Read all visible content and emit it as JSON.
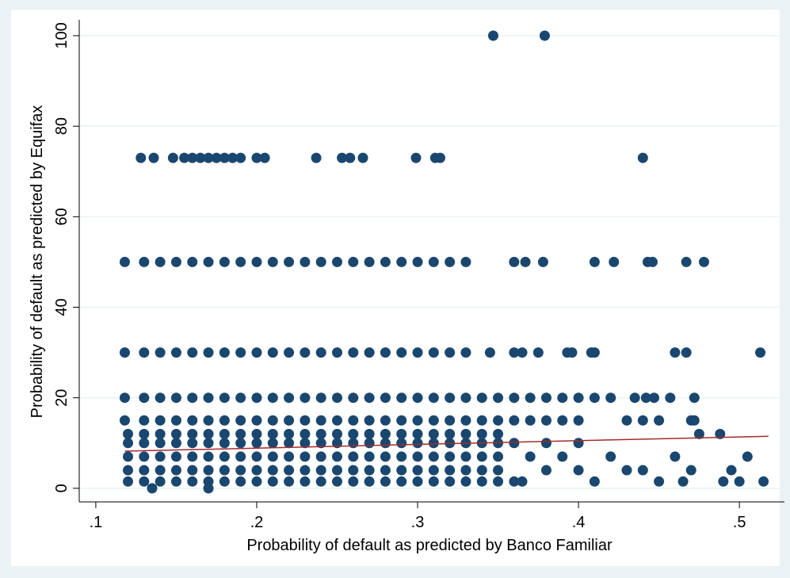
{
  "chart_data": {
    "type": "scatter",
    "x_label": "Probability of default as predicted by Banco Familiar",
    "y_label": "Probability of default as predicted by Equifax",
    "xlim": [
      0.0897,
      0.528
    ],
    "ylim": [
      -3,
      103.5
    ],
    "xticks": [
      {
        "value": 0.1,
        "label": ".1"
      },
      {
        "value": 0.2,
        "label": ".2"
      },
      {
        "value": 0.3,
        "label": ".3"
      },
      {
        "value": 0.4,
        "label": ".4"
      },
      {
        "value": 0.5,
        "label": ".5"
      }
    ],
    "yticks": [
      0,
      20,
      40,
      60,
      80,
      100
    ],
    "grid": true,
    "marker_color": "#1a476f",
    "series": [
      {
        "x": [
          0.347,
          0.379
        ],
        "values": [
          100,
          100
        ]
      },
      {
        "x": [
          0.128,
          0.136,
          0.148,
          0.155,
          0.16,
          0.165,
          0.17,
          0.175,
          0.18,
          0.185,
          0.19,
          0.2,
          0.205,
          0.237,
          0.253,
          0.258,
          0.266,
          0.299,
          0.311,
          0.314,
          0.44
        ],
        "values": [
          73,
          73,
          73,
          73,
          73,
          73,
          73,
          73,
          73,
          73,
          73,
          73,
          73,
          73,
          73,
          73,
          73,
          73,
          73,
          73,
          73
        ]
      },
      {
        "x": [
          0.118,
          0.13,
          0.14,
          0.15,
          0.16,
          0.17,
          0.18,
          0.19,
          0.2,
          0.21,
          0.22,
          0.23,
          0.24,
          0.25,
          0.26,
          0.27,
          0.28,
          0.29,
          0.3,
          0.31,
          0.32,
          0.33,
          0.36,
          0.367,
          0.378,
          0.41,
          0.422,
          0.443,
          0.446,
          0.467,
          0.478
        ],
        "values": [
          50,
          50,
          50,
          50,
          50,
          50,
          50,
          50,
          50,
          50,
          50,
          50,
          50,
          50,
          50,
          50,
          50,
          50,
          50,
          50,
          50,
          50,
          50,
          50,
          50,
          50,
          50,
          50,
          50,
          50,
          50
        ]
      },
      {
        "x": [
          0.118,
          0.13,
          0.14,
          0.15,
          0.16,
          0.17,
          0.18,
          0.19,
          0.2,
          0.21,
          0.22,
          0.23,
          0.24,
          0.25,
          0.26,
          0.27,
          0.28,
          0.29,
          0.3,
          0.31,
          0.32,
          0.33,
          0.345,
          0.36,
          0.365,
          0.375,
          0.393,
          0.396,
          0.408,
          0.41,
          0.46,
          0.467,
          0.513
        ],
        "values": [
          30,
          30,
          30,
          30,
          30,
          30,
          30,
          30,
          30,
          30,
          30,
          30,
          30,
          30,
          30,
          30,
          30,
          30,
          30,
          30,
          30,
          30,
          30,
          30,
          30,
          30,
          30,
          30,
          30,
          30,
          30,
          30,
          30
        ]
      },
      {
        "x": [
          0.118,
          0.13,
          0.14,
          0.15,
          0.16,
          0.17,
          0.18,
          0.19,
          0.2,
          0.21,
          0.22,
          0.23,
          0.24,
          0.25,
          0.26,
          0.27,
          0.28,
          0.29,
          0.3,
          0.31,
          0.32,
          0.33,
          0.34,
          0.35,
          0.36,
          0.37,
          0.38,
          0.39,
          0.4,
          0.41,
          0.42,
          0.435,
          0.442,
          0.447,
          0.457,
          0.472
        ],
        "values": [
          20,
          20,
          20,
          20,
          20,
          20,
          20,
          20,
          20,
          20,
          20,
          20,
          20,
          20,
          20,
          20,
          20,
          20,
          20,
          20,
          20,
          20,
          20,
          20,
          20,
          20,
          20,
          20,
          20,
          20,
          20,
          20,
          20,
          20,
          20,
          20
        ]
      },
      {
        "x": [
          0.118,
          0.13,
          0.14,
          0.15,
          0.16,
          0.17,
          0.18,
          0.19,
          0.2,
          0.21,
          0.22,
          0.23,
          0.24,
          0.25,
          0.26,
          0.27,
          0.28,
          0.29,
          0.3,
          0.31,
          0.32,
          0.33,
          0.34,
          0.35,
          0.36,
          0.37,
          0.38,
          0.39,
          0.4,
          0.43,
          0.44,
          0.45,
          0.47,
          0.472
        ],
        "values": [
          15,
          15,
          15,
          15,
          15,
          15,
          15,
          15,
          15,
          15,
          15,
          15,
          15,
          15,
          15,
          15,
          15,
          15,
          15,
          15,
          15,
          15,
          15,
          15,
          15,
          15,
          15,
          15,
          15,
          15,
          15,
          15,
          15,
          15
        ]
      },
      {
        "x": [
          0.12,
          0.13,
          0.14,
          0.15,
          0.16,
          0.17,
          0.18,
          0.19,
          0.2,
          0.21,
          0.22,
          0.23,
          0.24,
          0.25,
          0.26,
          0.27,
          0.28,
          0.29,
          0.3,
          0.31,
          0.32,
          0.33,
          0.34,
          0.35,
          0.475,
          0.488
        ],
        "values": [
          12,
          12,
          12,
          12,
          12,
          12,
          12,
          12,
          12,
          12,
          12,
          12,
          12,
          12,
          12,
          12,
          12,
          12,
          12,
          12,
          12,
          12,
          12,
          12,
          12,
          12
        ]
      },
      {
        "x": [
          0.12,
          0.13,
          0.14,
          0.15,
          0.16,
          0.17,
          0.18,
          0.19,
          0.2,
          0.21,
          0.22,
          0.23,
          0.24,
          0.25,
          0.26,
          0.27,
          0.28,
          0.29,
          0.3,
          0.31,
          0.32,
          0.33,
          0.34,
          0.35,
          0.36,
          0.38,
          0.4
        ],
        "values": [
          10,
          10,
          10,
          10,
          10,
          10,
          10,
          10,
          10,
          10,
          10,
          10,
          10,
          10,
          10,
          10,
          10,
          10,
          10,
          10,
          10,
          10,
          10,
          10,
          10,
          10,
          10
        ]
      },
      {
        "x": [
          0.12,
          0.13,
          0.14,
          0.15,
          0.16,
          0.17,
          0.18,
          0.19,
          0.2,
          0.21,
          0.22,
          0.23,
          0.24,
          0.25,
          0.26,
          0.27,
          0.28,
          0.29,
          0.3,
          0.31,
          0.32,
          0.33,
          0.34,
          0.35,
          0.37,
          0.39,
          0.42,
          0.46,
          0.505
        ],
        "values": [
          7,
          7,
          7,
          7,
          7,
          7,
          7,
          7,
          7,
          7,
          7,
          7,
          7,
          7,
          7,
          7,
          7,
          7,
          7,
          7,
          7,
          7,
          7,
          7,
          7,
          7,
          7,
          7,
          7
        ]
      },
      {
        "x": [
          0.12,
          0.13,
          0.14,
          0.15,
          0.16,
          0.17,
          0.18,
          0.19,
          0.2,
          0.21,
          0.22,
          0.23,
          0.24,
          0.25,
          0.26,
          0.27,
          0.28,
          0.29,
          0.3,
          0.31,
          0.32,
          0.33,
          0.34,
          0.35,
          0.38,
          0.4,
          0.43,
          0.44,
          0.47,
          0.495
        ],
        "values": [
          4,
          4,
          4,
          4,
          4,
          4,
          4,
          4,
          4,
          4,
          4,
          4,
          4,
          4,
          4,
          4,
          4,
          4,
          4,
          4,
          4,
          4,
          4,
          4,
          4,
          4,
          4,
          4,
          4,
          4
        ]
      },
      {
        "x": [
          0.12,
          0.13,
          0.14,
          0.15,
          0.16,
          0.17,
          0.18,
          0.19,
          0.2,
          0.21,
          0.22,
          0.23,
          0.24,
          0.25,
          0.26,
          0.27,
          0.28,
          0.29,
          0.3,
          0.31,
          0.32,
          0.33,
          0.34,
          0.35,
          0.36,
          0.365,
          0.41,
          0.45,
          0.465,
          0.49,
          0.5,
          0.515
        ],
        "values": [
          1.5,
          1.5,
          1.5,
          1.5,
          1.5,
          1.5,
          1.5,
          1.5,
          1.5,
          1.5,
          1.5,
          1.5,
          1.5,
          1.5,
          1.5,
          1.5,
          1.5,
          1.5,
          1.5,
          1.5,
          1.5,
          1.5,
          1.5,
          1.5,
          1.5,
          1.5,
          1.5,
          1.5,
          1.5,
          1.5,
          1.5,
          1.5
        ]
      },
      {
        "x": [
          0.135,
          0.17
        ],
        "values": [
          0,
          0
        ]
      }
    ],
    "fit": {
      "color": "#a52a2a",
      "x": [
        0.118,
        0.518
      ],
      "values": [
        8.2,
        11.5
      ]
    }
  }
}
